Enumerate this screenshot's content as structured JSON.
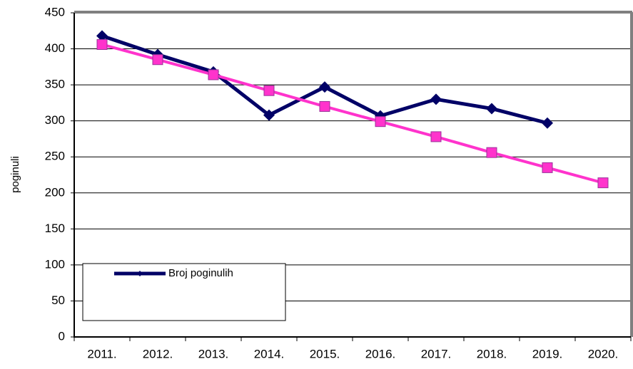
{
  "chart_data": {
    "type": "line",
    "y_label": "poginuli",
    "categories": [
      "2011.",
      "2012.",
      "2013.",
      "2014.",
      "2015.",
      "2016.",
      "2017.",
      "2018.",
      "2019.",
      "2020."
    ],
    "series": [
      {
        "name": "Broj poginulih",
        "color": "#000066",
        "marker": "diamond",
        "values": [
          418,
          392,
          368,
          308,
          347,
          307,
          330,
          317,
          297,
          null
        ]
      },
      {
        "color": "#ff33cc",
        "marker": "square",
        "values": [
          406,
          385,
          364,
          342,
          320,
          299,
          278,
          256,
          235,
          214
        ]
      }
    ],
    "ylim": [
      0,
      450
    ],
    "yticks": [
      0,
      50,
      100,
      150,
      200,
      250,
      300,
      350,
      400,
      450
    ],
    "grid": true,
    "legend": "lower left"
  }
}
